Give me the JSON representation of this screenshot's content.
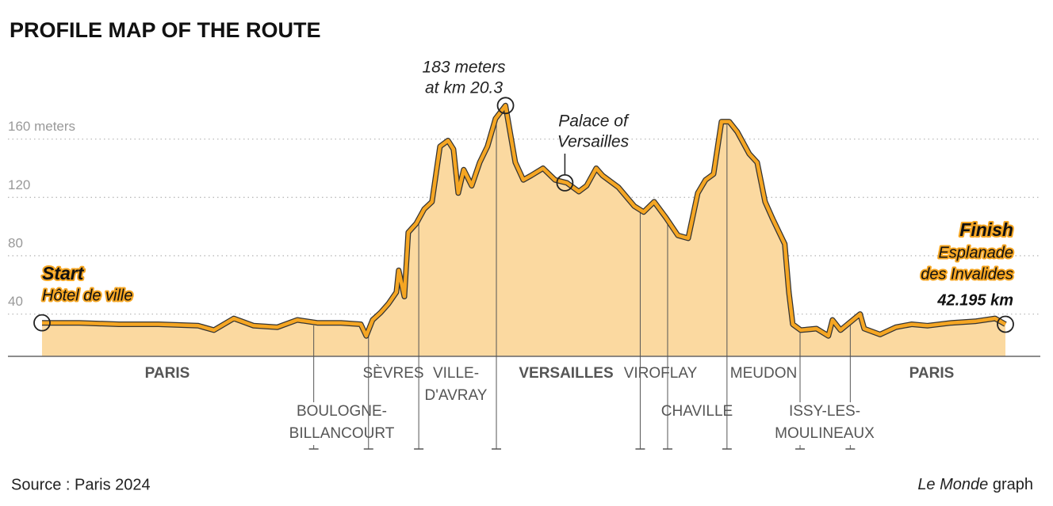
{
  "chart_data": {
    "type": "area",
    "title": "PROFILE MAP OF THE ROUTE",
    "source": "Source : Paris 2024",
    "credit_brand": "Le Monde",
    "credit_text": "graph",
    "color": "#f5a623",
    "fill": "#fbd9a0",
    "grid": true,
    "xlim": [
      0,
      42.195
    ],
    "ylim": [
      11,
      200
    ],
    "yticks": [
      40,
      80,
      120,
      {
        "value": 160,
        "label": "160 meters"
      }
    ],
    "x": [
      0,
      1.63,
      3.37,
      5.1,
      6.84,
      7.53,
      8.4,
      9.27,
      10.31,
      11.18,
      12.05,
      13.09,
      13.96,
      14.2,
      14.48,
      14.83,
      15.17,
      15.52,
      15.62,
      15.87,
      16.04,
      16.39,
      16.74,
      17.08,
      17.43,
      17.78,
      18.02,
      18.23,
      18.47,
      18.82,
      19.17,
      19.51,
      19.86,
      20.3,
      20.73,
      21.08,
      21.42,
      21.94,
      22.47,
      22.99,
      23.51,
      23.85,
      24.27,
      24.55,
      25.24,
      25.94,
      26.35,
      26.81,
      27.33,
      27.85,
      28.3,
      28.72,
      29.06,
      29.41,
      29.76,
      30.1,
      30.45,
      30.97,
      31.32,
      31.67,
      32.01,
      32.53,
      32.71,
      32.88,
      33.23,
      33.92,
      34.44,
      34.62,
      34.97,
      35.83,
      36.01,
      36.7,
      37.4,
      38.09,
      38.78,
      39.83,
      40.87,
      41.74,
      42.195
    ],
    "values": [
      34,
      34,
      33,
      33,
      32,
      29,
      37,
      32,
      31,
      36,
      34,
      34,
      33,
      25,
      36,
      41,
      47,
      55,
      70,
      52,
      96,
      102,
      112,
      117,
      155,
      159,
      153,
      123,
      139,
      128,
      144,
      155,
      174,
      183,
      144,
      132,
      135,
      140,
      132,
      130,
      124,
      128,
      140,
      135,
      127,
      114,
      110,
      117,
      106,
      94,
      92,
      123,
      132,
      136,
      172,
      172,
      165,
      150,
      144,
      117,
      105,
      88,
      55,
      33,
      29,
      30,
      25,
      36,
      29,
      40,
      30,
      26,
      31,
      33,
      32,
      34,
      35,
      37,
      33
    ],
    "peak": {
      "lines": [
        "183 meters",
        "at km 20.3"
      ],
      "x": 20.3,
      "y": 183
    },
    "palace": {
      "lines": [
        "Palace of",
        "Versailles"
      ],
      "x": 22.9,
      "y": 130
    },
    "start": {
      "title": "Start",
      "place": "Hôtel de ville"
    },
    "finish": {
      "title": "Finish",
      "place": [
        "Esplanade",
        "des Invalides"
      ],
      "distance": "42.195 km"
    },
    "boundaries": [
      11.9,
      14.3,
      16.5,
      19.9,
      26.2,
      27.4,
      30.0,
      33.2,
      35.4
    ],
    "places": [
      {
        "lines": [
          "PARIS"
        ]
      },
      {
        "lines": [
          "BOULOGNE-",
          "BILLANCOURT"
        ]
      },
      {
        "lines": [
          "SÈVRES"
        ]
      },
      {
        "lines": [
          "VILLE-",
          "D'AVRAY"
        ]
      },
      {
        "lines": [
          "VERSAILLES"
        ]
      },
      {
        "lines": [
          "VIROFLAY"
        ]
      },
      {
        "lines": [
          "CHAVILLE"
        ]
      },
      {
        "lines": [
          "MEUDON"
        ]
      },
      {
        "lines": [
          "ISSY-LES-",
          "MOULINEAUX"
        ]
      },
      {
        "lines": [
          "PARIS"
        ]
      }
    ]
  }
}
